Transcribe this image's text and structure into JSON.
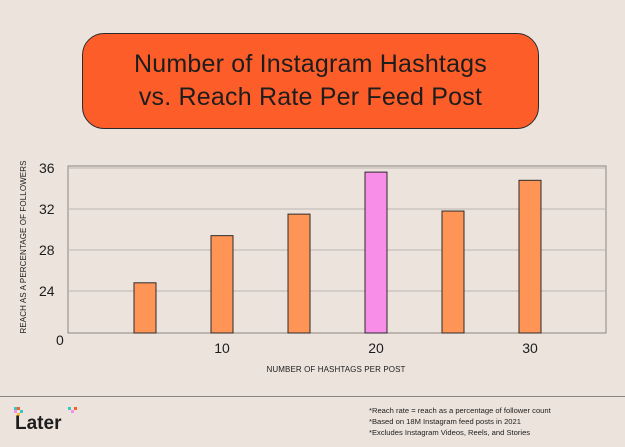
{
  "title_lines": [
    "Number of Instagram Hashtags",
    "vs. Reach Rate Per Feed Post"
  ],
  "chart_data": {
    "type": "bar",
    "title": "Number of Instagram Hashtags vs. Reach Rate Per Feed Post",
    "xlabel": "NUMBER OF HASHTAGS PER POST",
    "ylabel": "REACH AS A PERCENTAGE OF FOLLOWERS",
    "x_ticks": [
      "10",
      "20",
      "30"
    ],
    "x_tick_values": [
      10,
      20,
      30
    ],
    "y_ticks": [
      "0",
      "24",
      "28",
      "32",
      "36"
    ],
    "y_tick_values": [
      24,
      28,
      32,
      36
    ],
    "y_zero_label": "0",
    "x": [
      5,
      10,
      15,
      20,
      25,
      30
    ],
    "values": [
      24.8,
      29.4,
      31.5,
      35.6,
      31.8,
      34.8
    ],
    "highlight_index": 3,
    "colors": {
      "bar": "#fe9556",
      "highlight": "#f98ee9",
      "outline": "#2b2b2b",
      "grid": "#bdb6b1"
    },
    "grid": true
  },
  "footer": {
    "logo_text": "Later",
    "notes": [
      "*Reach rate = reach as a percentage of follower count",
      "*Based on 18M Instagram feed posts in 2021",
      "*Excludes Instagram Videos, Reels, and Stories"
    ]
  }
}
